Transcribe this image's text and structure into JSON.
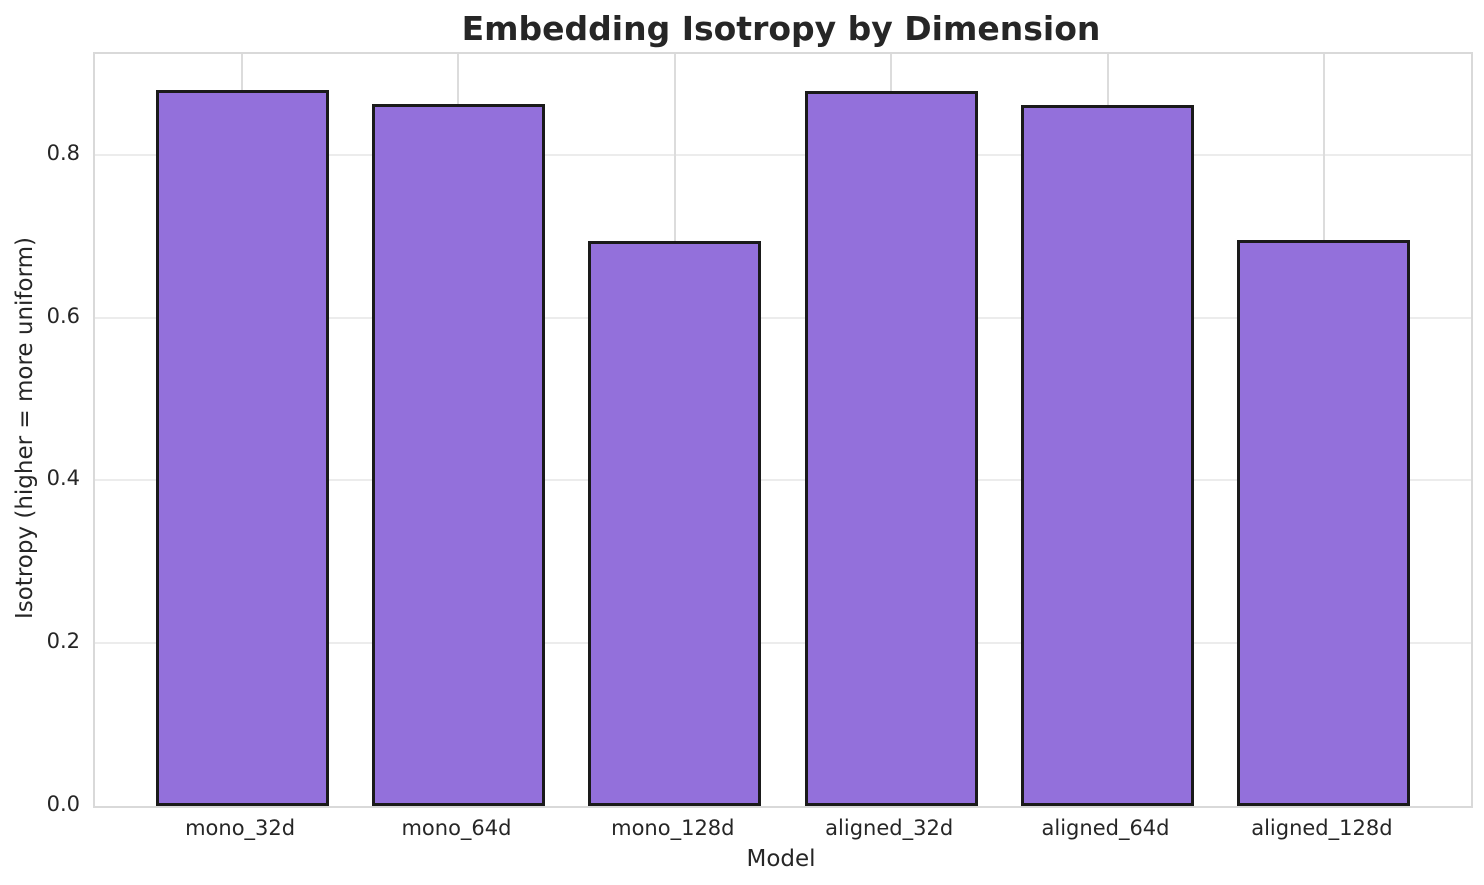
{
  "chart_data": {
    "type": "bar",
    "title": "Embedding Isotropy by Dimension",
    "xlabel": "Model",
    "ylabel": "Isotropy (higher = more uniform)",
    "categories": [
      "mono_32d",
      "mono_64d",
      "mono_128d",
      "aligned_32d",
      "aligned_64d",
      "aligned_128d"
    ],
    "values": [
      0.88,
      0.863,
      0.694,
      0.879,
      0.861,
      0.695
    ],
    "ylim": [
      0,
      0.924
    ],
    "ytick_values": [
      0.0,
      0.2,
      0.4,
      0.6,
      0.8
    ],
    "ytick_labels": [
      "0.0",
      "0.2",
      "0.4",
      "0.6",
      "0.8"
    ],
    "grid": true,
    "legend": "none",
    "bar_width_fraction": 0.8,
    "colors": {
      "bar_fill": "#9370DB",
      "bar_edge": "#1a1a1a",
      "grid_horizontal": "#ececec",
      "grid_vertical": "#dcdcdc",
      "spine": "#d9d9d9",
      "text": "#262626",
      "background": "#ffffff"
    }
  }
}
